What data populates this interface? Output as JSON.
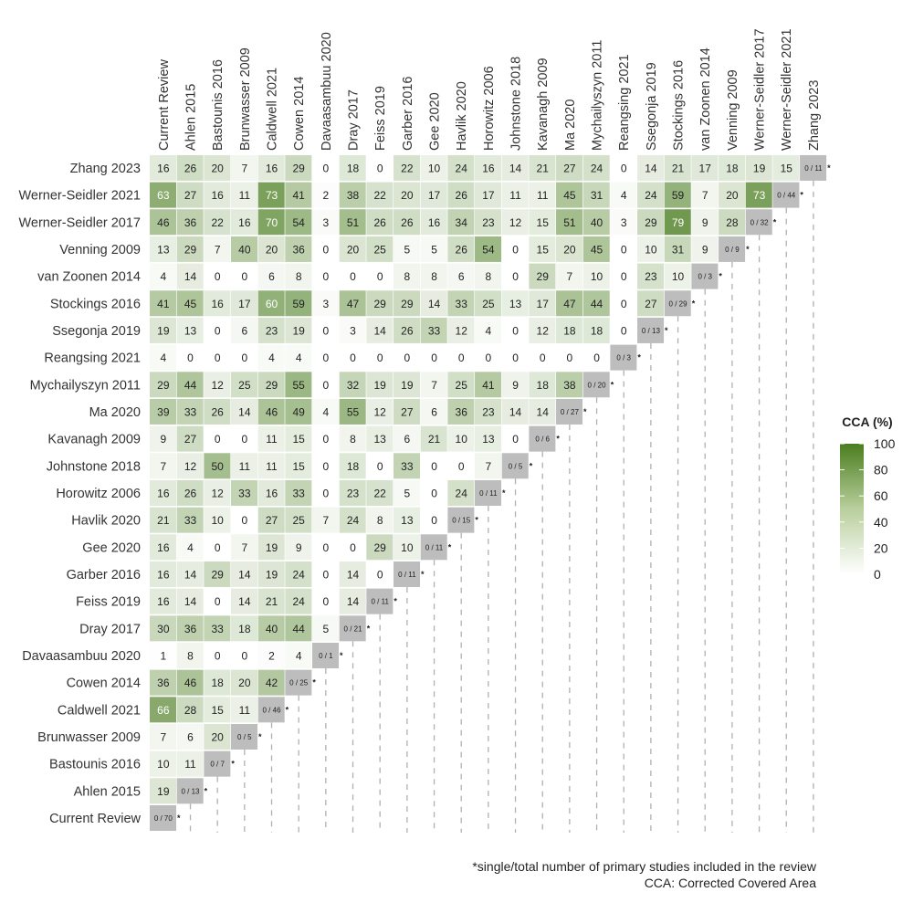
{
  "chart_data": {
    "type": "heatmap",
    "studies": [
      "Current Review",
      "Ahlen 2015",
      "Bastounis 2016",
      "Brunwasser 2009",
      "Caldwell 2021",
      "Cowen 2014",
      "Davaasambuu 2020",
      "Dray 2017",
      "Feiss 2019",
      "Garber 2016",
      "Gee 2020",
      "Havlik 2020",
      "Horowitz 2006",
      "Johnstone 2018",
      "Kavanagh 2009",
      "Ma 2020",
      "Mychailyszyn 2011",
      "Reangsing 2021",
      "Ssegonja 2019",
      "Stockings 2016",
      "van Zoonen 2014",
      "Venning 2009",
      "Werner-Seidler 2017",
      "Werner-Seidler 2021",
      "Zhang 2023"
    ],
    "values": [
      [
        null
      ],
      [
        19,
        null
      ],
      [
        10,
        11,
        null
      ],
      [
        7,
        6,
        20,
        null
      ],
      [
        66,
        28,
        15,
        11,
        null
      ],
      [
        36,
        46,
        18,
        20,
        42,
        null
      ],
      [
        1,
        8,
        0,
        0,
        2,
        4,
        null
      ],
      [
        30,
        36,
        33,
        18,
        40,
        44,
        5,
        null
      ],
      [
        16,
        14,
        0,
        14,
        21,
        24,
        0,
        14,
        null
      ],
      [
        16,
        14,
        29,
        14,
        19,
        24,
        0,
        14,
        0,
        null
      ],
      [
        16,
        4,
        0,
        7,
        19,
        9,
        0,
        0,
        29,
        10,
        null
      ],
      [
        21,
        33,
        10,
        0,
        27,
        25,
        7,
        24,
        8,
        13,
        0,
        null
      ],
      [
        16,
        26,
        12,
        33,
        16,
        33,
        0,
        23,
        22,
        5,
        0,
        24,
        null
      ],
      [
        7,
        12,
        50,
        11,
        11,
        15,
        0,
        18,
        0,
        33,
        0,
        0,
        7,
        null
      ],
      [
        9,
        27,
        0,
        0,
        11,
        15,
        0,
        8,
        13,
        6,
        21,
        10,
        13,
        0,
        null
      ],
      [
        39,
        33,
        26,
        14,
        46,
        49,
        4,
        55,
        12,
        27,
        6,
        36,
        23,
        14,
        14,
        null
      ],
      [
        29,
        44,
        12,
        25,
        29,
        55,
        0,
        32,
        19,
        19,
        7,
        25,
        41,
        9,
        18,
        38,
        null
      ],
      [
        4,
        0,
        0,
        0,
        4,
        4,
        0,
        0,
        0,
        0,
        0,
        0,
        0,
        0,
        0,
        0,
        0,
        null
      ],
      [
        19,
        13,
        0,
        6,
        23,
        19,
        0,
        3,
        14,
        26,
        33,
        12,
        4,
        0,
        12,
        18,
        18,
        0,
        null
      ],
      [
        41,
        45,
        16,
        17,
        60,
        59,
        3,
        47,
        29,
        29,
        14,
        33,
        25,
        13,
        17,
        47,
        44,
        0,
        27,
        null
      ],
      [
        4,
        14,
        0,
        0,
        6,
        8,
        0,
        0,
        0,
        8,
        8,
        6,
        8,
        0,
        29,
        7,
        10,
        0,
        23,
        10,
        null
      ],
      [
        13,
        29,
        7,
        40,
        20,
        36,
        0,
        20,
        25,
        5,
        5,
        26,
        54,
        0,
        15,
        20,
        45,
        0,
        10,
        31,
        9,
        null
      ],
      [
        46,
        36,
        22,
        16,
        70,
        54,
        3,
        51,
        26,
        26,
        16,
        34,
        23,
        12,
        15,
        51,
        40,
        3,
        29,
        79,
        9,
        28,
        null
      ],
      [
        63,
        27,
        16,
        11,
        73,
        41,
        2,
        38,
        22,
        20,
        17,
        26,
        17,
        11,
        11,
        45,
        31,
        4,
        24,
        59,
        7,
        20,
        73,
        null
      ],
      [
        16,
        26,
        20,
        7,
        16,
        29,
        0,
        18,
        0,
        22,
        10,
        24,
        16,
        14,
        21,
        27,
        24,
        0,
        14,
        21,
        17,
        18,
        19,
        15,
        null
      ]
    ],
    "diagonal_labels": [
      "0 / 70",
      "0 / 13",
      "0 / 7",
      "0 / 5",
      "0 / 46",
      "0 / 25",
      "0 / 1",
      "0 / 21",
      "0 / 11",
      "0 / 11",
      "0 / 11",
      "0 / 15",
      "0 / 11",
      "0 / 5",
      "0 / 6",
      "0 / 27",
      "0 / 20",
      "0 / 3",
      "0 / 13",
      "0 / 29",
      "0 / 3",
      "0 / 9",
      "0 / 32",
      "0 / 44",
      "0 / 11"
    ],
    "diagonal_marker": "*",
    "legend": {
      "title": "CCA (%)",
      "ticks": [
        0,
        20,
        40,
        60,
        80,
        100
      ],
      "color_low": "#ffffff",
      "color_high": "#4a7d1f",
      "placement": "right"
    },
    "colors": {
      "diagonal": "#bdbdbd",
      "white_text_threshold": 60,
      "dashed_line": "#b0b0b0"
    },
    "grid": false
  },
  "footnotes": {
    "note1": "*single/total number of primary studies included in the review",
    "note2": "CCA: Corrected Covered Area"
  }
}
